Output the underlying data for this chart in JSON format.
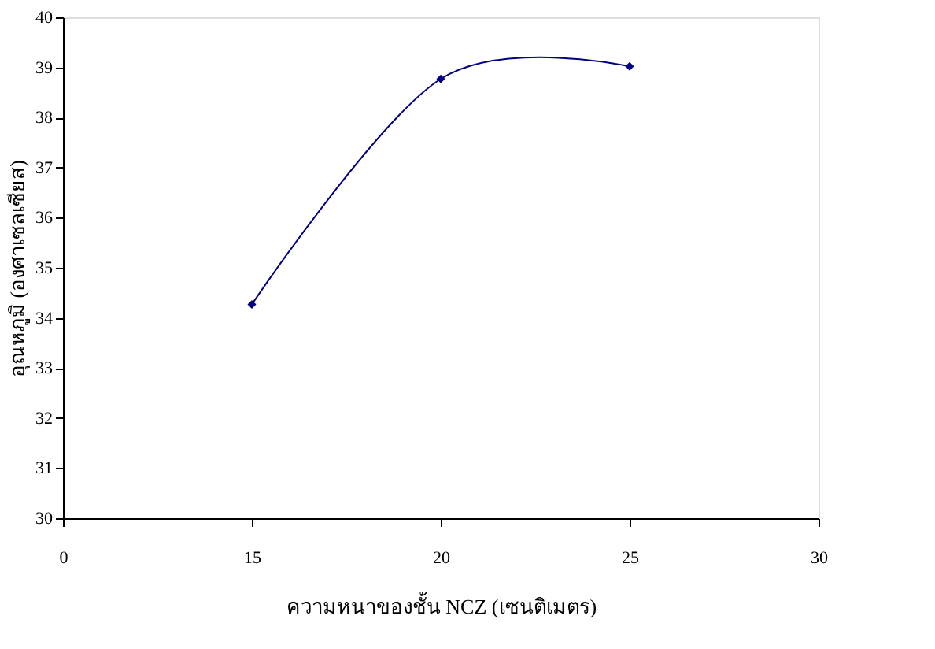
{
  "chart_data": {
    "type": "line",
    "xlabel": "ความหนาของชั้น NCZ (เซนติเมตร)",
    "ylabel": "อุณหภูมิ (องศาเซลเซียส)",
    "categories": [
      "0",
      "15",
      "20",
      "25",
      "30"
    ],
    "series": [
      {
        "color": "#000080",
        "values": [
          null,
          34.27,
          38.77,
          39.02,
          null
        ]
      }
    ],
    "ylim": [
      30,
      40
    ],
    "yticks": [
      30,
      31,
      32,
      33,
      34,
      35,
      36,
      37,
      38,
      39,
      40
    ],
    "marker": "diamond",
    "line_style": "solid",
    "grid": false
  }
}
